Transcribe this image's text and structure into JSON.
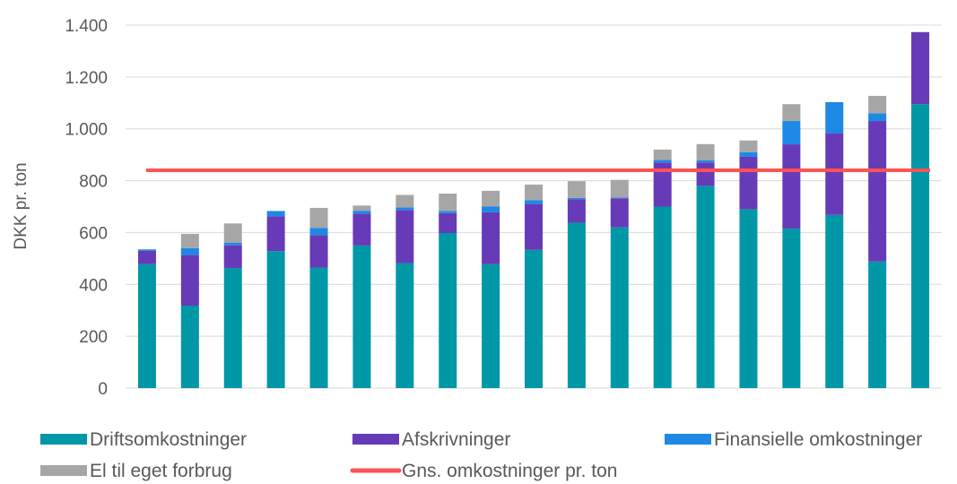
{
  "chart_data": {
    "type": "bar",
    "stacked": true,
    "title": "",
    "xlabel": "",
    "ylabel": "DKK pr. ton",
    "ylim": [
      0,
      1400
    ],
    "yticks": [
      0,
      200,
      400,
      600,
      800,
      1000,
      1200,
      1400
    ],
    "ytick_labels": [
      "0",
      "200",
      "400",
      "600",
      "800",
      "1.000",
      "1.200",
      "1.400"
    ],
    "grid": true,
    "legend_position": "bottom",
    "bar_count": 19,
    "series": [
      {
        "name": "Driftsomkostninger",
        "color": "#0097A7",
        "values": [
          478,
          318,
          463,
          528,
          465,
          550,
          482,
          598,
          478,
          533,
          638,
          620,
          700,
          780,
          690,
          615,
          668,
          488,
          1095
        ]
      },
      {
        "name": "Afskrivninger",
        "color": "#673AB7",
        "values": [
          52,
          195,
          87,
          135,
          125,
          122,
          205,
          77,
          200,
          177,
          90,
          112,
          170,
          90,
          202,
          325,
          315,
          542,
          278
        ]
      },
      {
        "name": "Finansielle omkostninger",
        "color": "#1E88E5",
        "values": [
          5,
          27,
          10,
          20,
          28,
          12,
          10,
          8,
          23,
          15,
          5,
          3,
          10,
          8,
          18,
          90,
          120,
          30,
          0
        ]
      },
      {
        "name": "El til eget forbrug",
        "color": "#A6A6A6",
        "values": [
          0,
          55,
          75,
          0,
          77,
          20,
          48,
          67,
          60,
          60,
          65,
          68,
          40,
          63,
          45,
          65,
          0,
          67,
          0
        ]
      }
    ],
    "reference_line": {
      "name": "Gns. omkostninger pr. ton",
      "value": 840,
      "color": "#FF5252"
    }
  }
}
